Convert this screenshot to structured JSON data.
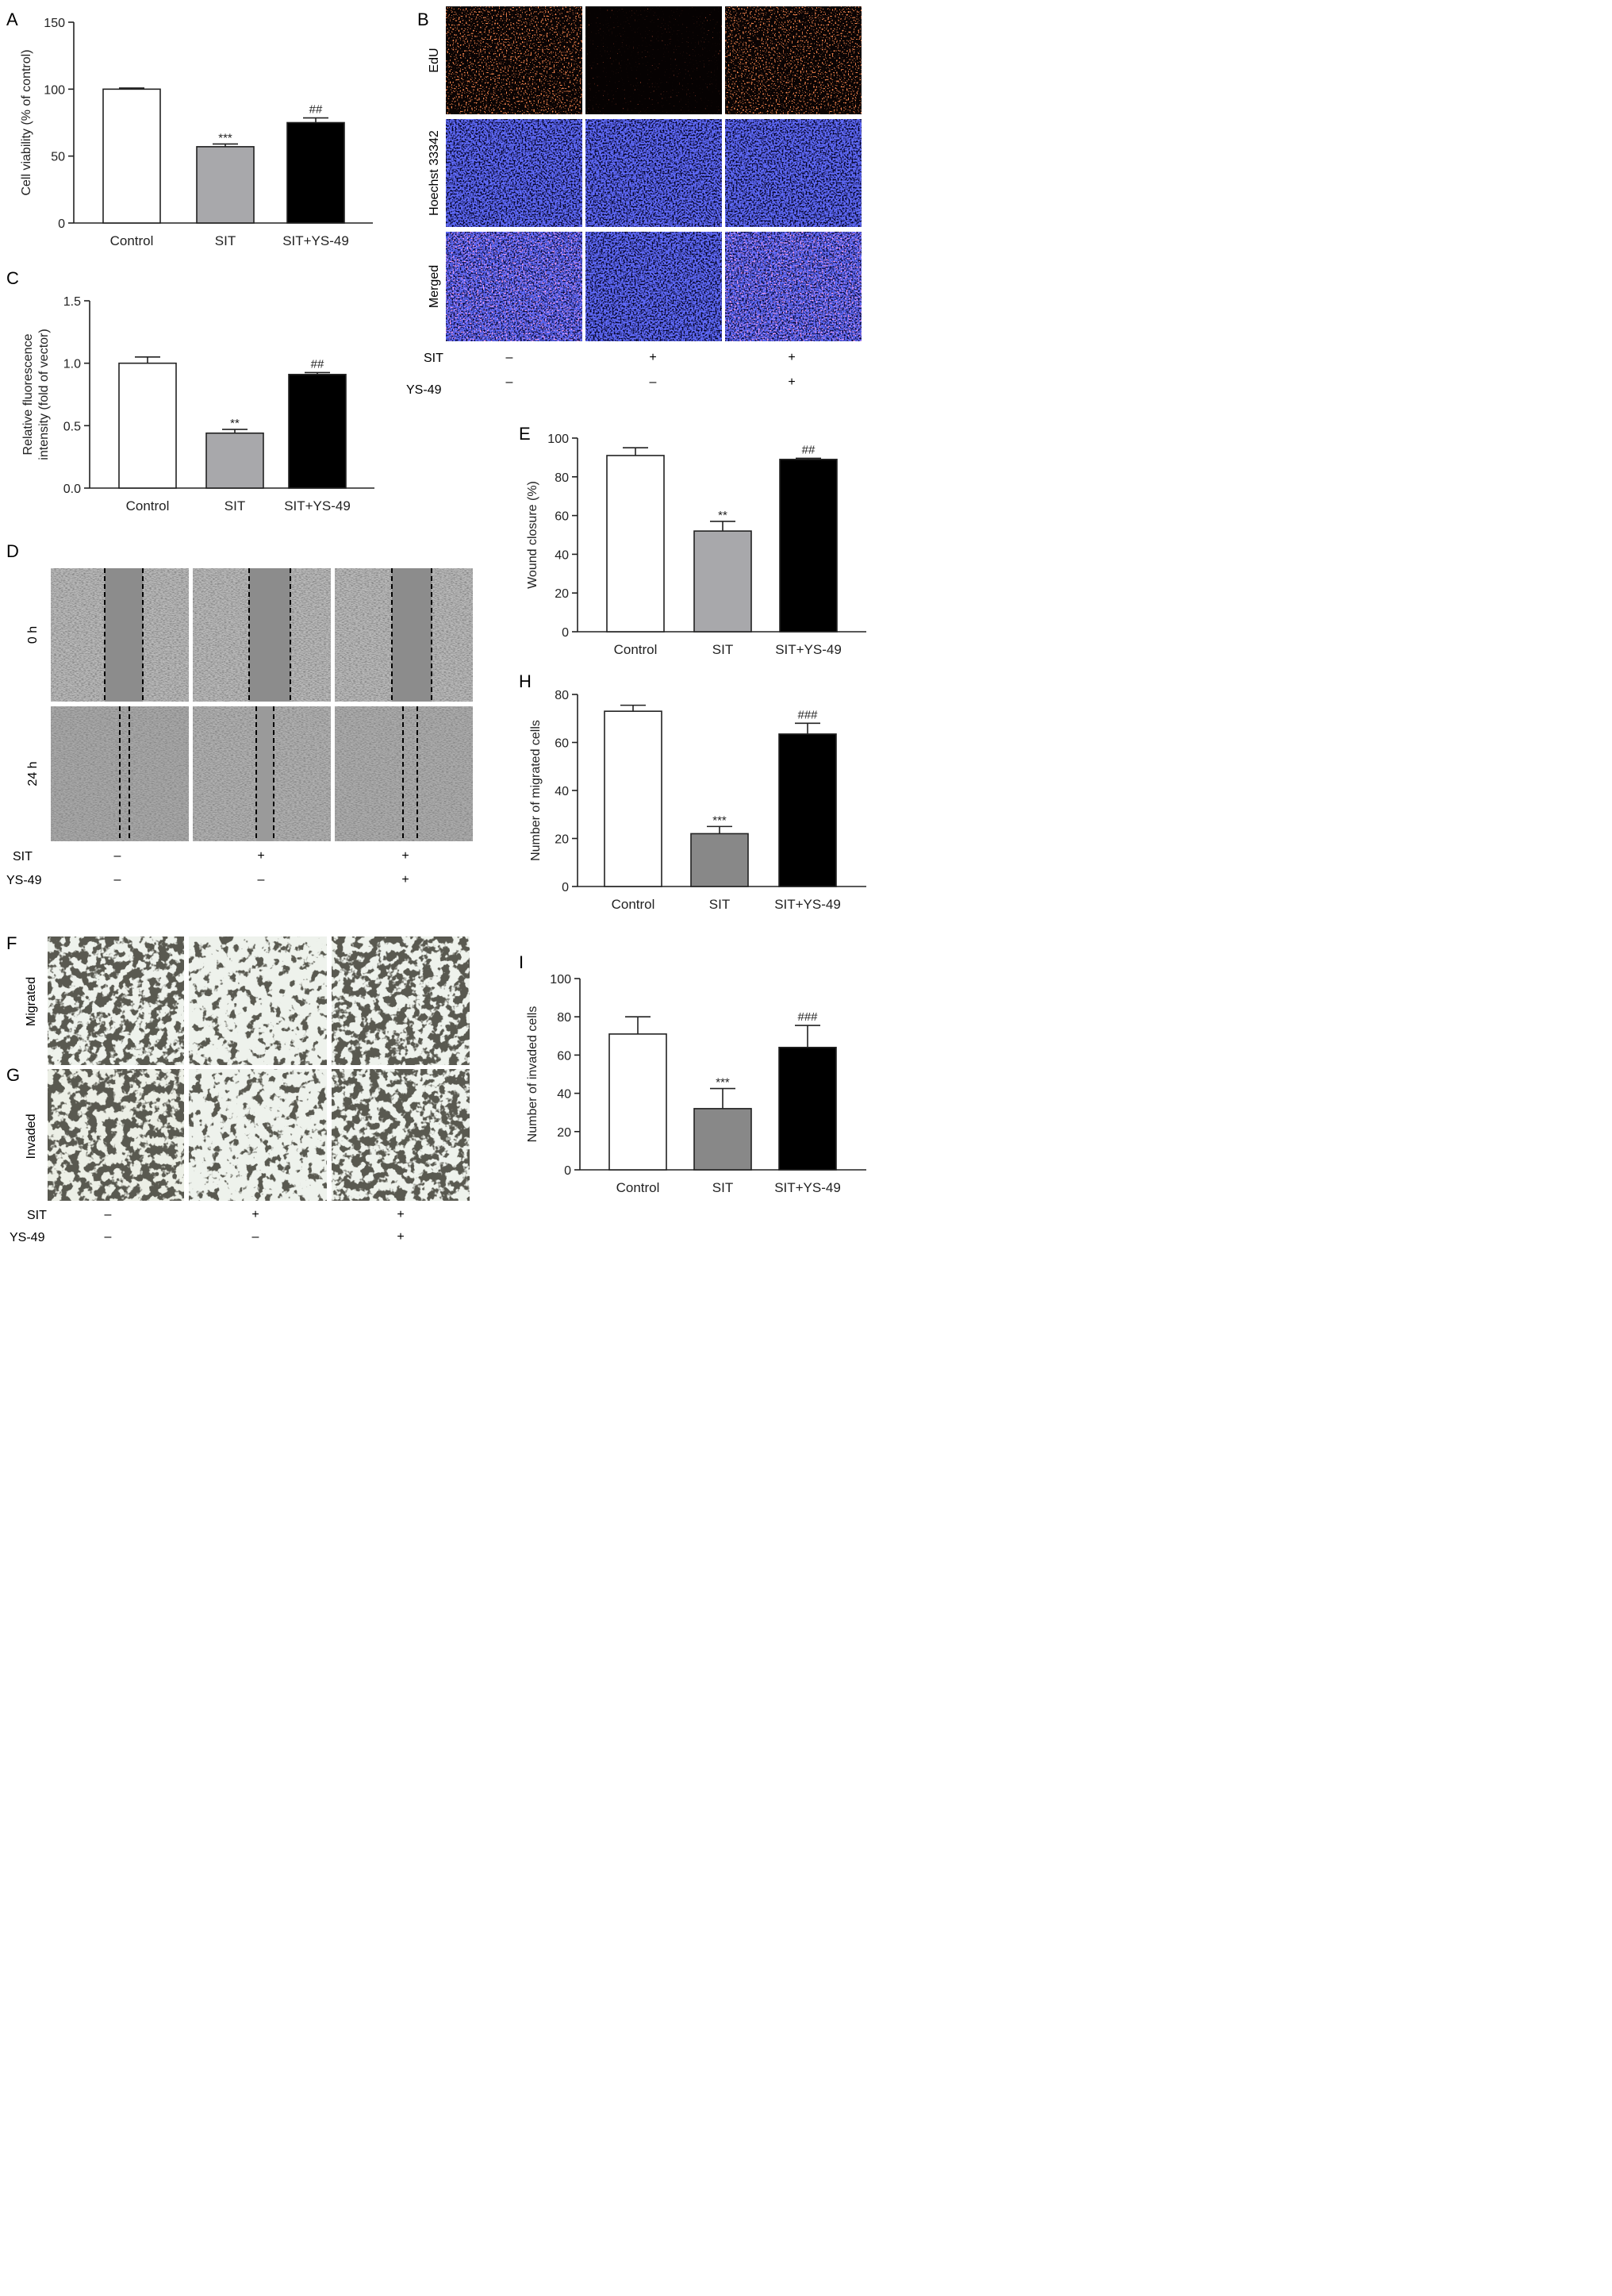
{
  "colors": {
    "control": "#ffffff",
    "sit_light": "#a8a8ab",
    "sit_dark": "#888888",
    "combo": "#000000",
    "axis": "#222222"
  },
  "panels": {
    "A": {
      "letter": "A"
    },
    "B": {
      "letter": "B"
    },
    "C": {
      "letter": "C"
    },
    "D": {
      "letter": "D"
    },
    "E": {
      "letter": "E"
    },
    "F": {
      "letter": "F"
    },
    "G": {
      "letter": "G"
    },
    "H": {
      "letter": "H"
    },
    "I": {
      "letter": "I"
    }
  },
  "chart_data": [
    {
      "panel": "A",
      "type": "bar",
      "categories": [
        "Control",
        "SIT",
        "SIT+YS-49"
      ],
      "values": [
        100,
        57,
        75
      ],
      "errors": [
        0.8,
        2,
        3.5
      ],
      "annotations": [
        "",
        "***",
        "##"
      ],
      "ylabel": "Cell viability (% of control)",
      "xlabel": "",
      "ylim": [
        0,
        150
      ],
      "yticks": [
        0,
        50,
        100,
        150
      ],
      "ytick_labels": [
        "0",
        "50",
        "100",
        "150"
      ]
    },
    {
      "panel": "C",
      "type": "bar",
      "categories": [
        "Control",
        "SIT",
        "SIT+YS-49"
      ],
      "values": [
        1.0,
        0.44,
        0.91
      ],
      "errors": [
        0.05,
        0.03,
        0.015
      ],
      "annotations": [
        "",
        "**",
        "##"
      ],
      "ylabel": [
        "Relative fluorescence",
        "intensity (fold of vector)"
      ],
      "xlabel": "",
      "ylim": [
        0,
        1.5
      ],
      "yticks": [
        0,
        0.5,
        1.0,
        1.5
      ],
      "ytick_labels": [
        "0.0",
        "0.5",
        "1.0",
        "1.5"
      ]
    },
    {
      "panel": "E",
      "type": "bar",
      "categories": [
        "Control",
        "SIT",
        "SIT+YS-49"
      ],
      "values": [
        91,
        52,
        89
      ],
      "errors": [
        4,
        5,
        0.6
      ],
      "annotations": [
        "",
        "**",
        "##"
      ],
      "ylabel": "Wound closure (%)",
      "xlabel": "",
      "ylim": [
        0,
        100
      ],
      "yticks": [
        0,
        20,
        40,
        60,
        80,
        100
      ],
      "ytick_labels": [
        "0",
        "20",
        "40",
        "60",
        "80",
        "100"
      ]
    },
    {
      "panel": "H",
      "type": "bar",
      "categories": [
        "Control",
        "SIT",
        "SIT+YS-49"
      ],
      "values": [
        73,
        22,
        63.5
      ],
      "errors": [
        2.5,
        3,
        4.5
      ],
      "annotations": [
        "",
        "***",
        "###"
      ],
      "ylabel": "Number of migrated cells",
      "xlabel": "",
      "ylim": [
        0,
        80
      ],
      "yticks": [
        0,
        20,
        40,
        60,
        80
      ],
      "ytick_labels": [
        "0",
        "20",
        "40",
        "60",
        "80"
      ]
    },
    {
      "panel": "I",
      "type": "bar",
      "categories": [
        "Control",
        "SIT",
        "SIT+YS-49"
      ],
      "values": [
        71,
        32,
        64
      ],
      "errors": [
        9,
        10.5,
        11.5
      ],
      "annotations": [
        "",
        "***",
        "###"
      ],
      "ylabel": "Number of invaded cells",
      "xlabel": "",
      "ylim": [
        0,
        100
      ],
      "yticks": [
        0,
        20,
        40,
        60,
        80,
        100
      ],
      "ytick_labels": [
        "0",
        "20",
        "40",
        "60",
        "80",
        "100"
      ]
    }
  ],
  "micrographs": {
    "B": {
      "row_labels": [
        "EdU",
        "Hoechst 33342",
        "Merged"
      ]
    },
    "D": {
      "row_labels": [
        "0 h",
        "24 h"
      ]
    },
    "FG": {
      "row_labels": [
        "Migrated",
        "Invaded"
      ]
    }
  },
  "treatments": {
    "row_labels": [
      "SIT",
      "YS-49"
    ],
    "SIT": [
      "–",
      "+",
      "+"
    ],
    "YS49": [
      "–",
      "–",
      "+"
    ]
  }
}
